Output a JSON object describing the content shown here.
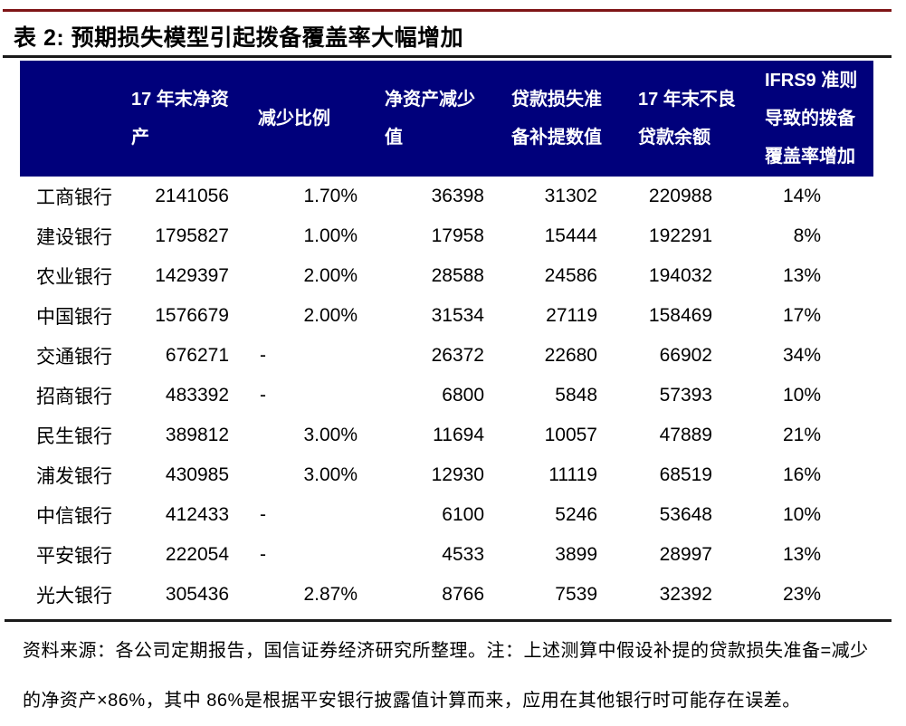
{
  "title": "表 2:  预期损失模型引起拨备覆盖率大幅增加",
  "table": {
    "columns": [
      "",
      "17 年末净资产",
      "减少比例",
      "净资产减少值",
      "贷款损失准备补提数值",
      "17 年末不良贷款余额",
      "IFRS9 准则导致的拨备覆盖率增加"
    ],
    "rows": [
      [
        "工商银行",
        "2141056",
        "1.70%",
        "36398",
        "31302",
        "220988",
        "14%"
      ],
      [
        "建设银行",
        "1795827",
        "1.00%",
        "17958",
        "15444",
        "192291",
        "8%"
      ],
      [
        "农业银行",
        "1429397",
        "2.00%",
        "28588",
        "24586",
        "194032",
        "13%"
      ],
      [
        "中国银行",
        "1576679",
        "2.00%",
        "31534",
        "27119",
        "158469",
        "17%"
      ],
      [
        "交通银行",
        "676271",
        "-",
        "26372",
        "22680",
        "66902",
        "34%"
      ],
      [
        "招商银行",
        "483392",
        "-",
        "6800",
        "5848",
        "57393",
        "10%"
      ],
      [
        "民生银行",
        "389812",
        "3.00%",
        "11694",
        "10057",
        "47889",
        "21%"
      ],
      [
        "浦发银行",
        "430985",
        "3.00%",
        "12930",
        "11119",
        "68519",
        "16%"
      ],
      [
        "中信银行",
        "412433",
        "-",
        "6100",
        "5246",
        "53648",
        "10%"
      ],
      [
        "平安银行",
        "222054",
        "-",
        "4533",
        "3899",
        "28997",
        "13%"
      ],
      [
        "光大银行",
        "305436",
        "2.87%",
        "8766",
        "7539",
        "32392",
        "23%"
      ]
    ]
  },
  "footer": {
    "note": "资料来源：各公司定期报告，国信证券经济研究所整理。注：上述测算中假设补提的贷款损失准备=减少的净资产×86%，其中 86%是根据平安银行披露值计算而来，应用在其他银行时可能存在误差。"
  },
  "colors": {
    "header_bg": "#00007b",
    "header_text": "#ffffff",
    "accent_rule": "#7f1416",
    "divider_rule": "#1a1a1a"
  }
}
